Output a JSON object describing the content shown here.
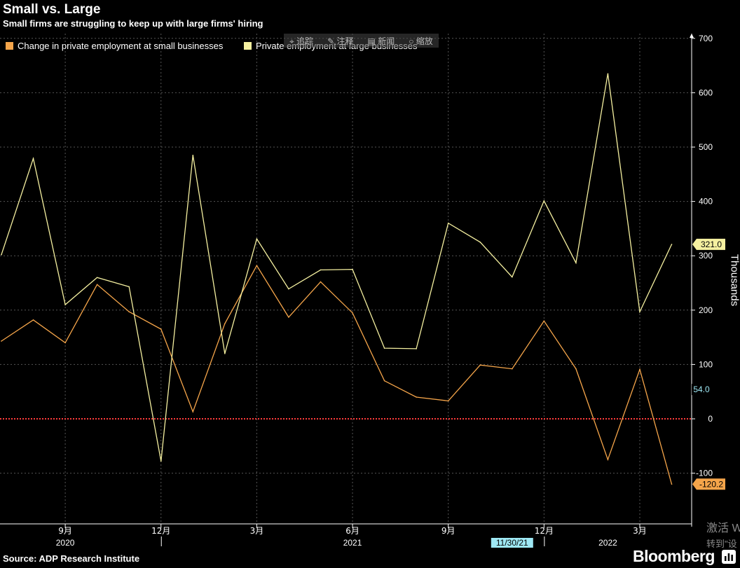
{
  "header": {
    "title": "Small vs. Large",
    "subtitle": "Small firms are struggling to keep up with large firms' hiring"
  },
  "toolbar_overlay": {
    "items": [
      "追踪",
      "注释",
      "新闻",
      "缩放"
    ]
  },
  "footer": {
    "source": "Source: ADP Research Institute",
    "brand": "Bloomberg"
  },
  "watermark": {
    "line1": "激活 W",
    "line2": "转到\"设"
  },
  "colors": {
    "small": "#f5a54a",
    "large": "#f5f0a0",
    "zero_line": "#ff3b3b",
    "grid": "#555555",
    "background": "#000000",
    "highlight_box": "#9ee8f4"
  },
  "chart_data": {
    "type": "line",
    "title": "Small vs. Large",
    "subtitle": "Small firms are struggling to keep up with large firms' hiring",
    "ylabel": "Thousands",
    "ylim": [
      -190,
      700
    ],
    "yticks": [
      -100,
      0,
      100,
      200,
      300,
      400,
      500,
      600,
      700
    ],
    "grid": true,
    "legend_position": "top-left",
    "x": [
      "2020-07",
      "2020-08",
      "2020-09",
      "2020-10",
      "2020-11",
      "2020-12",
      "2021-01",
      "2021-02",
      "2021-03",
      "2021-04",
      "2021-05",
      "2021-06",
      "2021-07",
      "2021-08",
      "2021-09",
      "2021-10",
      "2021-11",
      "2021-12",
      "2022-01",
      "2022-02",
      "2022-03",
      "2022-04"
    ],
    "xticks": [
      {
        "x": "2020-09",
        "label": "9月",
        "year": "2020"
      },
      {
        "x": "2020-12",
        "label": "12月",
        "year": ""
      },
      {
        "x": "2021-03",
        "label": "3月",
        "year": ""
      },
      {
        "x": "2021-06",
        "label": "6月",
        "year": "2021"
      },
      {
        "x": "2021-09",
        "label": "9月",
        "year": ""
      },
      {
        "x": "2021-12",
        "label": "12月",
        "year": ""
      },
      {
        "x": "2022-03",
        "label": "3月",
        "year": "2022"
      }
    ],
    "year_labels": [
      {
        "label": "2020",
        "between": [
          "2020-08",
          "2020-10"
        ]
      },
      {
        "label": "2021",
        "between": [
          "2021-05",
          "2021-07"
        ]
      },
      {
        "label": "2022",
        "between": [
          "2022-01",
          "2022-03"
        ]
      }
    ],
    "date_badge": {
      "label": "11/30/21",
      "x": "2021-11"
    },
    "reference_line": {
      "y": 0
    },
    "series": [
      {
        "name": "Change in private employment at small businesses",
        "color": "#f5a54a",
        "values": [
          143,
          182,
          140,
          247,
          197,
          165,
          13,
          175,
          282,
          187,
          252,
          195,
          70,
          40,
          33,
          99,
          92,
          180,
          92,
          -75,
          91,
          -120.2
        ],
        "end_label": "-120.2"
      },
      {
        "name": "Private employment at large businesses",
        "color": "#f5f0a0",
        "values": [
          302,
          479,
          210,
          260,
          243,
          -78,
          485,
          120,
          331,
          239,
          274,
          275,
          130,
          129,
          360,
          325,
          261,
          401,
          287,
          635,
          197,
          321.0
        ],
        "end_label": "321.0"
      }
    ],
    "extra_axis_label": {
      "label": "54.0",
      "y": 54.0
    }
  }
}
